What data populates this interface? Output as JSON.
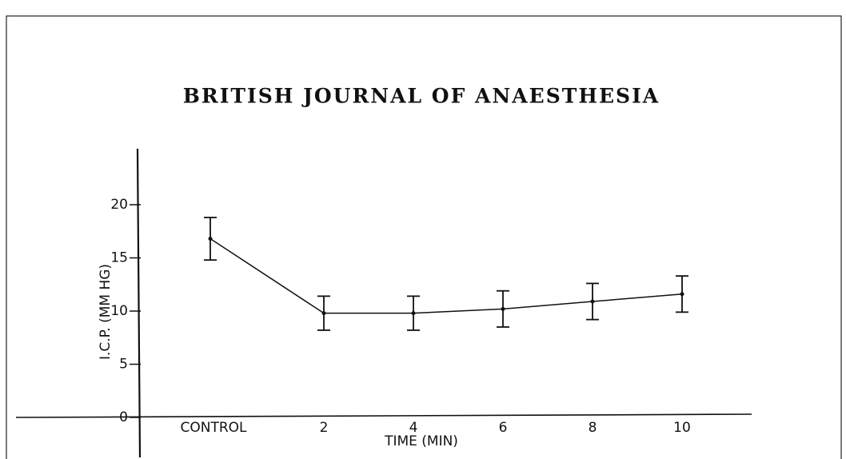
{
  "chart_data": {
    "type": "line",
    "title": "BRITISH JOURNAL OF ANAESTHESIA",
    "ylabel": "I.C.P. (MM HG)",
    "xlabel": "TIME (MIN)",
    "categories": [
      "CONTROL",
      "2",
      "4",
      "6",
      "8",
      "10"
    ],
    "values": [
      16.8,
      9.8,
      9.8,
      10.2,
      10.9,
      11.6
    ],
    "errors": [
      2.0,
      1.6,
      1.6,
      1.7,
      1.7,
      1.7
    ],
    "color": "#111111",
    "ylim": [
      0,
      25
    ],
    "yticks": [
      0,
      5,
      10,
      15,
      20
    ],
    "grid": false
  }
}
